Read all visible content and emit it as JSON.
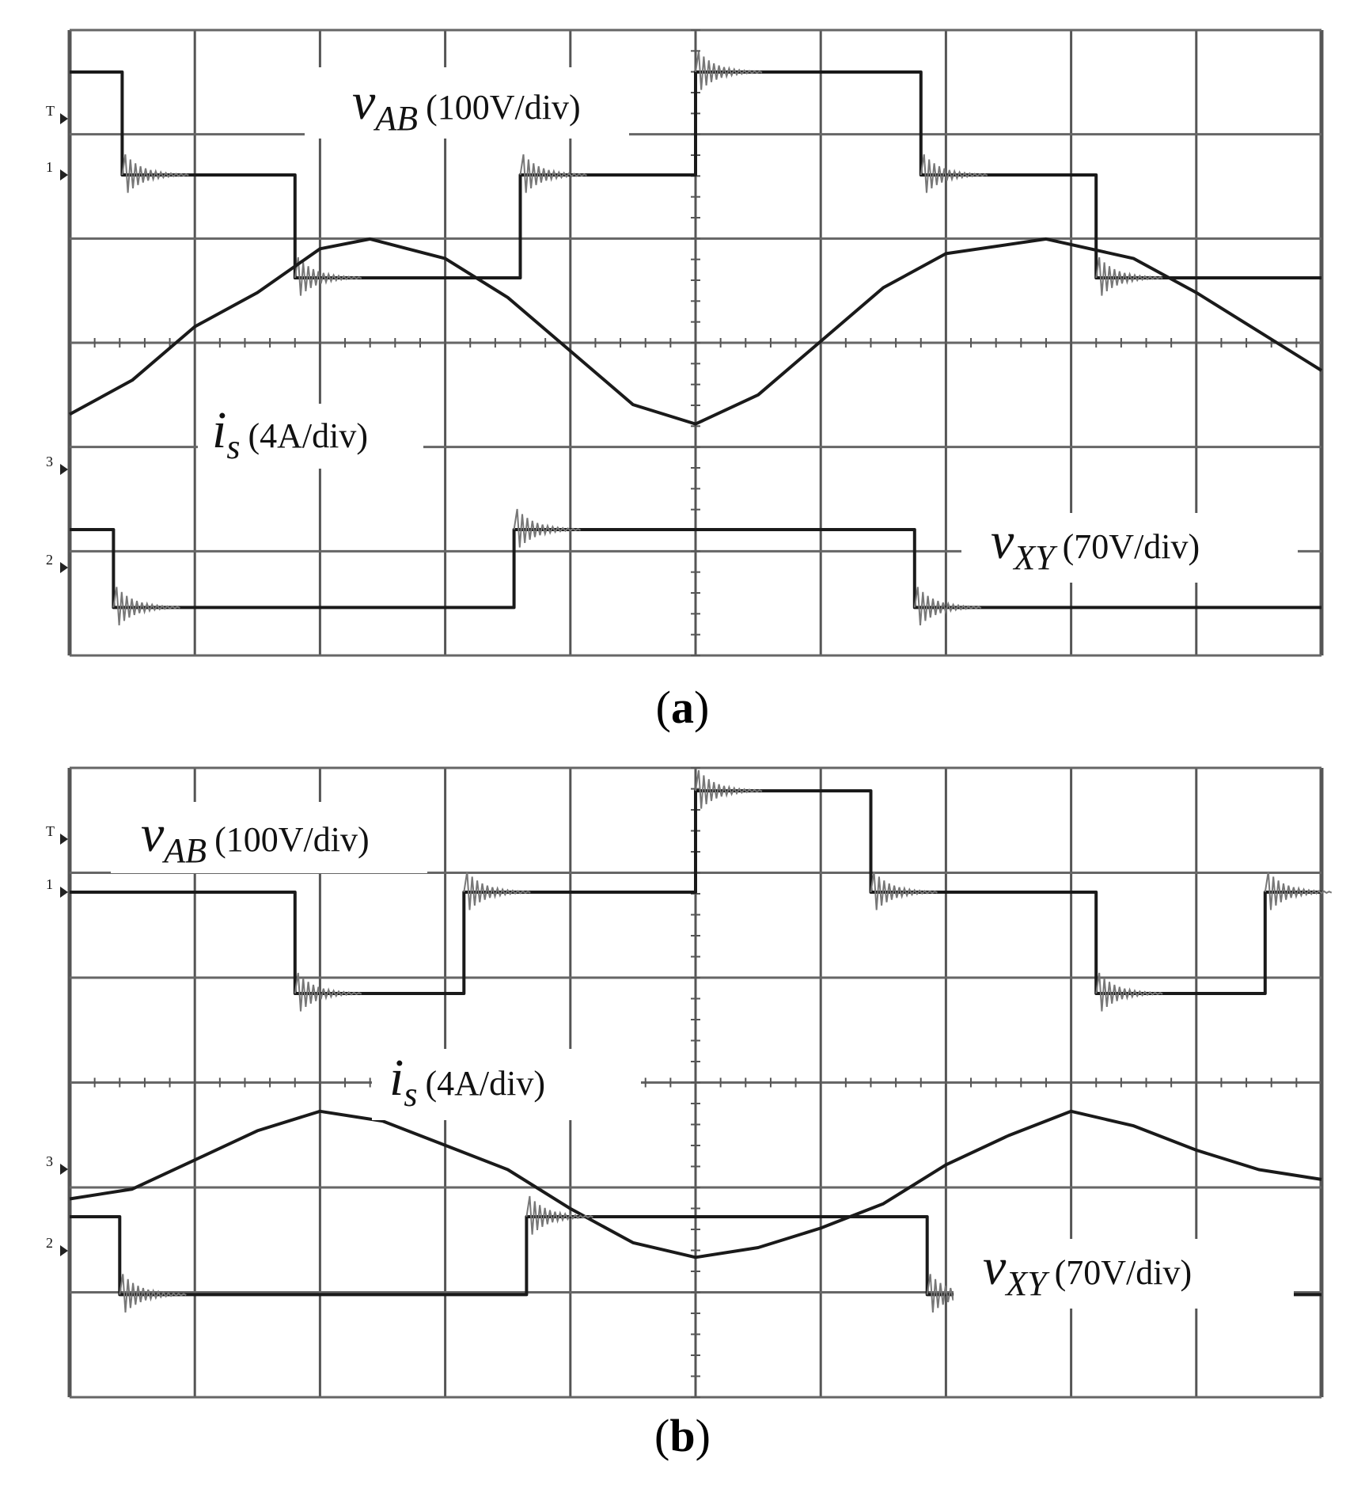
{
  "chart_data": [
    {
      "type": "line",
      "panel": "a",
      "caption_letter": "a",
      "x_divisions": 10,
      "y_divisions": 6,
      "grid": true,
      "channel_markers": [
        "T",
        "1",
        "3",
        "2"
      ],
      "series": [
        {
          "name": "vAB",
          "label_main": "v",
          "label_sub": "AB",
          "label_scale": "(100V/div)",
          "unit": "V",
          "scale_per_div": 100,
          "shape": "three-level square wave",
          "points": [
            [
              0.0,
              1
            ],
            [
              0.42,
              1
            ],
            [
              0.42,
              0
            ],
            [
              1.8,
              0
            ],
            [
              1.8,
              -1
            ],
            [
              3.6,
              -1
            ],
            [
              3.6,
              0
            ],
            [
              5.0,
              0
            ],
            [
              5.0,
              1
            ],
            [
              6.8,
              1
            ],
            [
              6.8,
              0
            ],
            [
              8.2,
              0
            ],
            [
              8.2,
              -1
            ],
            [
              10.0,
              -1
            ]
          ]
        },
        {
          "name": "is",
          "label_main": "i",
          "label_sub": "s",
          "label_scale": "(4A/div)",
          "unit": "A",
          "scale_per_div": 4,
          "shape": "sinusoid",
          "points": [
            [
              0.0,
              -0.45
            ],
            [
              0.5,
              -0.1
            ],
            [
              1.0,
              0.45
            ],
            [
              1.5,
              0.8
            ],
            [
              2.0,
              1.25
            ],
            [
              2.4,
              1.35
            ],
            [
              3.0,
              1.15
            ],
            [
              3.5,
              0.75
            ],
            [
              4.0,
              0.2
            ],
            [
              4.5,
              -0.35
            ],
            [
              5.0,
              -0.55
            ],
            [
              5.5,
              -0.25
            ],
            [
              6.0,
              0.3
            ],
            [
              6.5,
              0.85
            ],
            [
              7.0,
              1.2
            ],
            [
              7.8,
              1.35
            ],
            [
              8.5,
              1.15
            ],
            [
              9.0,
              0.8
            ],
            [
              9.5,
              0.4
            ],
            [
              10.0,
              0.0
            ]
          ]
        },
        {
          "name": "vXY",
          "label_main": "v",
          "label_sub": "XY",
          "label_scale": "(70V/div)",
          "unit": "V",
          "scale_per_div": 70,
          "shape": "two-level square wave",
          "points": [
            [
              0.0,
              0.35
            ],
            [
              0.35,
              0.35
            ],
            [
              0.35,
              -0.45
            ],
            [
              3.55,
              -0.45
            ],
            [
              3.55,
              0.35
            ],
            [
              6.75,
              0.35
            ],
            [
              6.75,
              -0.45
            ],
            [
              10.0,
              -0.45
            ]
          ]
        }
      ]
    },
    {
      "type": "line",
      "panel": "b",
      "caption_letter": "b",
      "x_divisions": 10,
      "y_divisions": 6,
      "grid": true,
      "channel_markers": [
        "T",
        "1",
        "3",
        "2"
      ],
      "series": [
        {
          "name": "vAB",
          "label_main": "v",
          "label_sub": "AB",
          "label_scale": "(100V/div)",
          "unit": "V",
          "scale_per_div": 100,
          "shape": "three-level square wave",
          "points": [
            [
              0.0,
              0
            ],
            [
              1.8,
              0
            ],
            [
              1.8,
              -1
            ],
            [
              3.15,
              -1
            ],
            [
              3.15,
              0
            ],
            [
              5.0,
              0
            ],
            [
              5.0,
              1
            ],
            [
              6.4,
              1
            ],
            [
              6.4,
              0
            ],
            [
              8.2,
              0
            ],
            [
              8.2,
              -1
            ],
            [
              9.55,
              -1
            ],
            [
              9.55,
              0
            ],
            [
              10.0,
              0
            ]
          ]
        },
        {
          "name": "is",
          "label_main": "i",
          "label_sub": "s",
          "label_scale": "(4A/div)",
          "unit": "A",
          "scale_per_div": 4,
          "shape": "sinusoid",
          "points": [
            [
              0.0,
              -1.15
            ],
            [
              0.5,
              -1.05
            ],
            [
              1.0,
              -0.75
            ],
            [
              1.5,
              -0.45
            ],
            [
              2.0,
              -0.25
            ],
            [
              2.5,
              -0.35
            ],
            [
              3.0,
              -0.6
            ],
            [
              3.5,
              -0.85
            ],
            [
              4.0,
              -1.25
            ],
            [
              4.5,
              -1.6
            ],
            [
              5.0,
              -1.75
            ],
            [
              5.5,
              -1.65
            ],
            [
              6.0,
              -1.45
            ],
            [
              6.5,
              -1.2
            ],
            [
              7.0,
              -0.8
            ],
            [
              7.5,
              -0.5
            ],
            [
              8.0,
              -0.25
            ],
            [
              8.5,
              -0.4
            ],
            [
              9.0,
              -0.65
            ],
            [
              9.5,
              -0.85
            ],
            [
              10.0,
              -0.95
            ]
          ]
        },
        {
          "name": "vXY",
          "label_main": "v",
          "label_sub": "XY",
          "label_scale": "(70V/div)",
          "unit": "V",
          "scale_per_div": 70,
          "shape": "two-level square wave",
          "points": [
            [
              0.0,
              0.35
            ],
            [
              0.4,
              0.35
            ],
            [
              0.4,
              -0.45
            ],
            [
              3.65,
              -0.45
            ],
            [
              3.65,
              0.35
            ],
            [
              6.85,
              0.35
            ],
            [
              6.85,
              -0.45
            ],
            [
              10.0,
              -0.45
            ]
          ]
        }
      ]
    }
  ]
}
